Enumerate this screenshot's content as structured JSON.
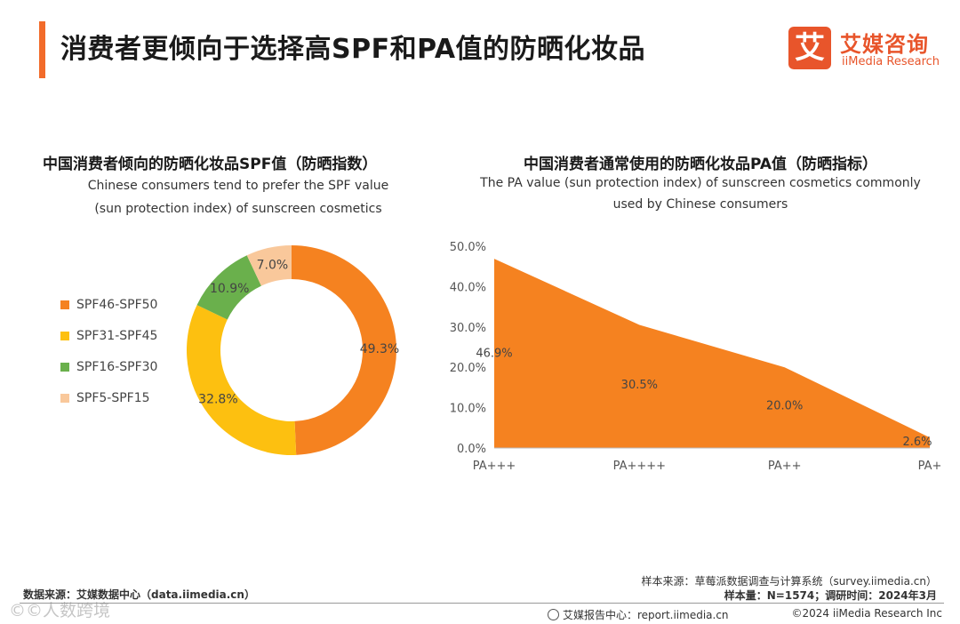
{
  "header": {
    "title": "消费者更倾向于选择高SPF和PA值的防晒化妆品",
    "logo_mark": "艾",
    "logo_cn": "艾媒咨询",
    "logo_en": "iiMedia Research",
    "accent_color": "#f26b2a"
  },
  "chart_data": [
    {
      "type": "pie",
      "title": "中国消费者倾向的防晒化妆品SPF值（防晒指数）",
      "subtitle_lines": [
        "Chinese consumers tend to prefer the SPF value",
        "(sun protection index) of sunscreen cosmetics"
      ],
      "categories": [
        "SPF46-SPF50",
        "SPF31-SPF45",
        "SPF16-SPF30",
        "SPF5-SPF15"
      ],
      "values": [
        49.3,
        32.8,
        10.9,
        7.0
      ],
      "labels": [
        "49.3%",
        "32.8%",
        "10.9%",
        "7.0%"
      ],
      "colors": [
        "#f58220",
        "#fdc010",
        "#6ab04c",
        "#f9c89b"
      ],
      "donut": true,
      "legend_position": "left"
    },
    {
      "type": "area",
      "title": "中国消费者通常使用的防晒化妆品PA值（防晒指标）",
      "subtitle_lines": [
        "The PA value (sun protection index) of sunscreen cosmetics commonly",
        "used by Chinese consumers"
      ],
      "categories": [
        "PA+++",
        "PA++++",
        "PA++",
        "PA+"
      ],
      "values": [
        46.9,
        30.5,
        20.0,
        2.6
      ],
      "labels": [
        "46.9%",
        "30.5%",
        "20.0%",
        "2.6%"
      ],
      "ylim": [
        0,
        50
      ],
      "yticks": [
        0,
        10,
        20,
        30,
        40,
        50
      ],
      "ytick_labels": [
        "0.0%",
        "10.0%",
        "20.0%",
        "30.0%",
        "40.0%",
        "50.0%"
      ],
      "grid": false,
      "color": "#f58220"
    }
  ],
  "footer": {
    "data_source": "数据来源：艾媒数据中心（data.iimedia.cn）",
    "sample_source": "样本来源：草莓派数据调查与计算系统（survey.iimedia.cn）",
    "sample_size": "样本量：N=1574；调研时间：2024年3月",
    "report_center": "艾媒报告中心：report.iimedia.cn",
    "copyright": "©2024  iiMedia Research  Inc",
    "watermark": "©©人数跨境"
  }
}
